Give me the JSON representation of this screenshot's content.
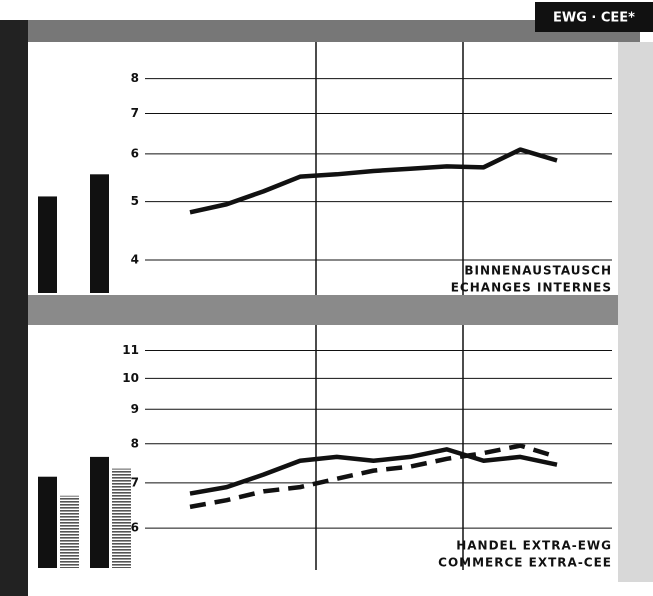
{
  "header": "EWG · CEE*",
  "chart_data": [
    {
      "type": "line",
      "yscale": "log",
      "ylim": [
        3.5,
        9.2
      ],
      "yticks": [
        4,
        5,
        6,
        7,
        8
      ],
      "grid": true,
      "labels": [
        "BINNENAUSTAUSCH",
        "ECHANGES INTERNES"
      ],
      "categories": [
        null,
        null,
        null,
        null,
        null,
        null,
        null,
        null,
        null,
        null,
        null
      ],
      "series": [
        {
          "color": "#111111",
          "dash": false,
          "values": [
            4.8,
            4.95,
            5.2,
            5.5,
            5.55,
            5.62,
            5.67,
            5.72,
            5.7,
            6.1,
            5.85
          ]
        }
      ],
      "bars": [
        {
          "color": "#111111",
          "hatch": false,
          "values": [
            5.1,
            5.55
          ]
        }
      ]
    },
    {
      "type": "line",
      "yscale": "log",
      "ylim": [
        5.2,
        12
      ],
      "yticks": [
        6,
        7,
        8,
        9,
        10,
        11
      ],
      "grid": true,
      "labels": [
        "HANDEL EXTRA-EWG",
        "COMMERCE EXTRA-CEE"
      ],
      "categories": [
        null,
        null,
        null,
        null,
        null,
        null,
        null,
        null,
        null,
        null,
        null
      ],
      "series": [
        {
          "color": "#111111",
          "dash": false,
          "values": [
            6.75,
            6.9,
            7.2,
            7.55,
            7.65,
            7.55,
            7.65,
            7.85,
            7.55,
            7.65,
            7.45
          ]
        },
        {
          "color": "#111111",
          "dash": true,
          "values": [
            6.45,
            6.6,
            6.8,
            6.9,
            7.1,
            7.3,
            7.4,
            7.6,
            7.75,
            7.95,
            7.65
          ]
        }
      ],
      "bars": [
        {
          "color": "#111111",
          "hatch": false,
          "values": [
            7.15,
            7.65
          ]
        },
        {
          "color": "#555555",
          "hatch": true,
          "values": [
            6.7,
            7.35
          ]
        }
      ]
    }
  ]
}
